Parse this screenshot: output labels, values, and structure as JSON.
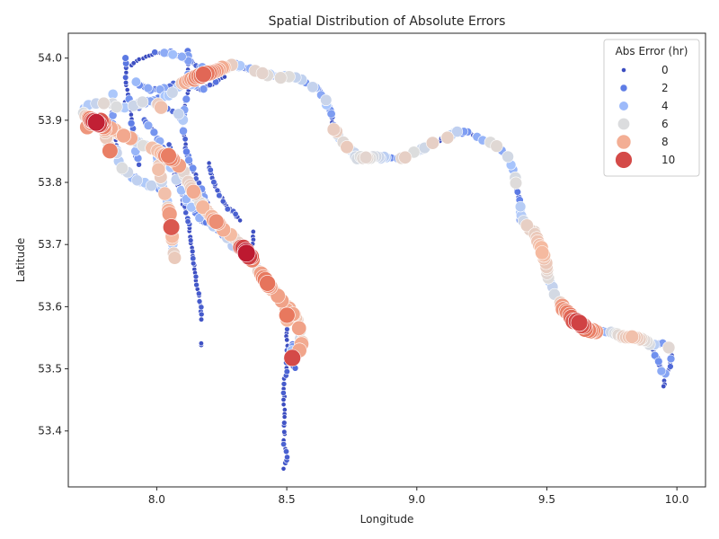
{
  "chart_data": {
    "type": "scatter",
    "title": "Spatial Distribution of Absolute Errors",
    "xlabel": "Longitude",
    "ylabel": "Latitude",
    "xlim": [
      7.66,
      10.11
    ],
    "ylim": [
      53.31,
      54.04
    ],
    "x_ticks": [
      8.0,
      8.5,
      9.0,
      9.5,
      10.0
    ],
    "x_tick_labels": [
      "8.0",
      "8.5",
      "9.0",
      "9.5",
      "10.0"
    ],
    "y_ticks": [
      53.4,
      53.5,
      53.6,
      53.7,
      53.8,
      53.9,
      54.0
    ],
    "y_tick_labels": [
      "53.4",
      "53.5",
      "53.6",
      "53.7",
      "53.8",
      "53.9",
      "54.0"
    ],
    "grid": false,
    "legend": {
      "title": "Abs Error (hr)",
      "placement": "top-right",
      "entries": [
        {
          "label": "0",
          "value": 0
        },
        {
          "label": "2",
          "value": 2
        },
        {
          "label": "4",
          "value": 4
        },
        {
          "label": "6",
          "value": 6
        },
        {
          "label": "8",
          "value": 8
        },
        {
          "label": "10",
          "value": 10
        }
      ]
    },
    "colormap": "coolwarm",
    "hue_range": [
      0,
      11
    ],
    "point_edge_color": "#ffffff",
    "tracks": [
      {
        "name": "t1",
        "path": [
          [
            7.72,
            53.92
          ],
          [
            7.78,
            53.93
          ],
          [
            7.86,
            53.92
          ],
          [
            7.95,
            53.93
          ],
          [
            8.05,
            53.94
          ],
          [
            8.1,
            53.96
          ],
          [
            8.16,
            53.97
          ],
          [
            8.22,
            53.98
          ],
          [
            8.3,
            53.99
          ],
          [
            8.38,
            53.98
          ],
          [
            8.45,
            53.97
          ],
          [
            8.52,
            53.97
          ],
          [
            8.58,
            53.96
          ],
          [
            8.62,
            53.95
          ],
          [
            8.65,
            53.93
          ],
          [
            8.67,
            53.91
          ],
          [
            8.68,
            53.89
          ],
          [
            8.7,
            53.87
          ],
          [
            8.73,
            53.86
          ],
          [
            8.75,
            53.85
          ],
          [
            8.77,
            53.84
          ],
          [
            8.8,
            53.84
          ],
          [
            8.85,
            53.84
          ],
          [
            8.9,
            53.84
          ],
          [
            8.95,
            53.84
          ],
          [
            9.0,
            53.85
          ],
          [
            9.05,
            53.86
          ],
          [
            9.1,
            53.87
          ],
          [
            9.15,
            53.88
          ],
          [
            9.2,
            53.88
          ],
          [
            9.25,
            53.87
          ],
          [
            9.3,
            53.86
          ],
          [
            9.33,
            53.85
          ],
          [
            9.35,
            53.84
          ],
          [
            9.37,
            53.82
          ],
          [
            9.38,
            53.8
          ],
          [
            9.39,
            53.78
          ],
          [
            9.4,
            53.76
          ],
          [
            9.4,
            53.74
          ],
          [
            9.42,
            53.73
          ],
          [
            9.45,
            53.72
          ],
          [
            9.47,
            53.7
          ],
          [
            9.49,
            53.68
          ],
          [
            9.5,
            53.66
          ],
          [
            9.51,
            53.64
          ],
          [
            9.53,
            53.62
          ],
          [
            9.56,
            53.6
          ],
          [
            9.6,
            53.58
          ],
          [
            9.63,
            53.57
          ],
          [
            9.68,
            53.56
          ],
          [
            9.75,
            53.56
          ],
          [
            9.8,
            53.55
          ],
          [
            9.85,
            53.55
          ],
          [
            9.9,
            53.54
          ],
          [
            9.95,
            53.54
          ],
          [
            9.98,
            53.53
          ]
        ],
        "step": 0.01,
        "base": 3.0,
        "amp": 4.0,
        "spikes": [
          [
            0.18,
            9.6
          ],
          [
            0.45,
            6.5
          ],
          [
            0.77,
            7.8
          ],
          [
            0.86,
            10.2
          ],
          [
            0.94,
            7.4
          ]
        ]
      },
      {
        "name": "t2",
        "path": [
          [
            7.72,
            53.91
          ],
          [
            7.75,
            53.9
          ],
          [
            7.8,
            53.89
          ],
          [
            7.85,
            53.88
          ],
          [
            7.9,
            53.87
          ],
          [
            7.95,
            53.86
          ],
          [
            8.0,
            53.85
          ],
          [
            8.05,
            53.84
          ],
          [
            8.08,
            53.83
          ],
          [
            8.1,
            53.82
          ],
          [
            8.12,
            53.8
          ],
          [
            8.15,
            53.78
          ],
          [
            8.18,
            53.76
          ],
          [
            8.22,
            53.74
          ],
          [
            8.27,
            53.72
          ],
          [
            8.32,
            53.7
          ],
          [
            8.36,
            53.68
          ],
          [
            8.39,
            53.66
          ],
          [
            8.42,
            53.64
          ],
          [
            8.46,
            53.62
          ],
          [
            8.5,
            53.6
          ],
          [
            8.52,
            53.59
          ],
          [
            8.54,
            53.58
          ],
          [
            8.55,
            53.56
          ],
          [
            8.56,
            53.54
          ],
          [
            8.55,
            53.53
          ]
        ],
        "step": 0.009,
        "base": 6.0,
        "amp": 2.5,
        "spikes": [
          [
            0.05,
            10.6
          ],
          [
            0.32,
            9.4
          ],
          [
            0.55,
            8.8
          ],
          [
            0.68,
            10.9
          ],
          [
            0.78,
            9.6
          ],
          [
            0.9,
            8.2
          ]
        ]
      },
      {
        "name": "t3",
        "path": [
          [
            8.2,
            53.83
          ],
          [
            8.22,
            53.8
          ],
          [
            8.24,
            53.78
          ],
          [
            8.27,
            53.76
          ],
          [
            8.3,
            53.75
          ],
          [
            8.32,
            53.74
          ]
        ],
        "step": 0.008,
        "base": 0.4,
        "amp": 0.8,
        "spikes": []
      },
      {
        "name": "t4",
        "path": [
          [
            8.05,
            53.86
          ],
          [
            8.07,
            53.83
          ],
          [
            8.08,
            53.8
          ],
          [
            8.1,
            53.77
          ],
          [
            8.12,
            53.74
          ],
          [
            8.13,
            53.71
          ],
          [
            8.14,
            53.68
          ],
          [
            8.15,
            53.65
          ],
          [
            8.16,
            53.62
          ],
          [
            8.17,
            53.6
          ],
          [
            8.17,
            53.58
          ]
        ],
        "step": 0.01,
        "base": 0.3,
        "amp": 0.6,
        "spikes": []
      },
      {
        "name": "t5",
        "path": [
          [
            8.17,
            53.54
          ],
          [
            8.17,
            53.54
          ]
        ],
        "step": 0.01,
        "base": 0.2,
        "amp": 0.0,
        "spikes": []
      },
      {
        "name": "t6",
        "path": [
          [
            8.37,
            53.72
          ],
          [
            8.37,
            53.7
          ]
        ],
        "step": 0.01,
        "base": 0.2,
        "amp": 0.0,
        "spikes": []
      },
      {
        "name": "t7",
        "path": [
          [
            8.0,
            53.84
          ],
          [
            8.02,
            53.8
          ],
          [
            8.04,
            53.77
          ],
          [
            8.05,
            53.74
          ],
          [
            8.06,
            53.72
          ],
          [
            8.06,
            53.7
          ],
          [
            8.07,
            53.68
          ]
        ],
        "step": 0.011,
        "base": 5.5,
        "amp": 3.0,
        "spikes": [
          [
            0.55,
            8.5
          ],
          [
            0.72,
            10.5
          ],
          [
            0.85,
            5.5
          ]
        ]
      },
      {
        "name": "t8",
        "path": [
          [
            8.5,
            53.6
          ],
          [
            8.5,
            53.55
          ],
          [
            8.5,
            53.5
          ],
          [
            8.49,
            53.48
          ],
          [
            8.49,
            53.45
          ],
          [
            8.49,
            53.41
          ],
          [
            8.49,
            53.38
          ],
          [
            8.5,
            53.36
          ],
          [
            8.49,
            53.34
          ]
        ],
        "step": 0.011,
        "base": 0.3,
        "amp": 0.7,
        "spikes": [
          [
            0.05,
            9.5
          ]
        ]
      },
      {
        "name": "t9",
        "path": [
          [
            8.52,
            53.54
          ],
          [
            8.52,
            53.51
          ],
          [
            8.53,
            53.5
          ]
        ],
        "step": 0.008,
        "base": 3.0,
        "amp": 2.0,
        "spikes": [
          [
            0.5,
            10.0
          ]
        ]
      },
      {
        "name": "t10",
        "path": [
          [
            9.9,
            53.54
          ],
          [
            9.92,
            53.52
          ],
          [
            9.94,
            53.5
          ],
          [
            9.95,
            53.49
          ],
          [
            9.97,
            53.5
          ],
          [
            9.98,
            53.52
          ]
        ],
        "step": 0.008,
        "base": 1.2,
        "amp": 2.5,
        "spikes": []
      },
      {
        "name": "t11",
        "path": [
          [
            9.95,
            53.48
          ],
          [
            9.95,
            53.47
          ]
        ],
        "step": 0.01,
        "base": 0.2,
        "amp": 0.0,
        "spikes": []
      },
      {
        "name": "t12",
        "path": [
          [
            7.9,
            53.99
          ],
          [
            7.95,
            54.0
          ],
          [
            8.0,
            54.01
          ],
          [
            8.05,
            54.01
          ],
          [
            8.1,
            54.0
          ],
          [
            8.15,
            53.99
          ],
          [
            8.2,
            53.98
          ],
          [
            8.25,
            53.99
          ],
          [
            8.3,
            53.99
          ],
          [
            8.35,
            53.98
          ]
        ],
        "step": 0.012,
        "base": 1.0,
        "amp": 3.5,
        "spikes": []
      },
      {
        "name": "t13",
        "path": [
          [
            7.92,
            53.96
          ],
          [
            7.97,
            53.95
          ],
          [
            8.02,
            53.95
          ],
          [
            8.07,
            53.96
          ],
          [
            8.12,
            53.96
          ],
          [
            8.17,
            53.95
          ],
          [
            8.22,
            53.96
          ],
          [
            8.26,
            53.97
          ]
        ],
        "step": 0.012,
        "base": 1.5,
        "amp": 3.0,
        "spikes": []
      },
      {
        "name": "t14",
        "path": [
          [
            7.88,
            53.93
          ],
          [
            7.93,
            53.92
          ],
          [
            7.98,
            53.93
          ],
          [
            8.03,
            53.92
          ],
          [
            8.08,
            53.91
          ],
          [
            8.1,
            53.9
          ]
        ],
        "step": 0.011,
        "base": 2.0,
        "amp": 3.5,
        "spikes": [
          [
            0.6,
            8.5
          ]
        ]
      },
      {
        "name": "t15",
        "path": [
          [
            7.95,
            53.9
          ],
          [
            7.99,
            53.88
          ],
          [
            8.02,
            53.86
          ],
          [
            8.04,
            53.84
          ],
          [
            8.06,
            53.82
          ],
          [
            8.08,
            53.8
          ],
          [
            8.1,
            53.78
          ],
          [
            8.13,
            53.76
          ],
          [
            8.17,
            53.74
          ],
          [
            8.22,
            53.73
          ],
          [
            8.27,
            53.71
          ],
          [
            8.31,
            53.69
          ]
        ],
        "step": 0.01,
        "base": 1.8,
        "amp": 3.5,
        "spikes": []
      },
      {
        "name": "t16",
        "path": [
          [
            7.83,
            53.94
          ],
          [
            7.83,
            53.9
          ],
          [
            7.84,
            53.87
          ],
          [
            7.85,
            53.84
          ],
          [
            7.87,
            53.82
          ],
          [
            7.9,
            53.81
          ],
          [
            7.95,
            53.8
          ],
          [
            8.0,
            53.79
          ],
          [
            8.02,
            53.79
          ]
        ],
        "step": 0.011,
        "base": 2.5,
        "amp": 3.5,
        "spikes": []
      },
      {
        "name": "t17",
        "path": [
          [
            7.88,
            54.0
          ],
          [
            7.88,
            53.97
          ],
          [
            7.89,
            53.94
          ],
          [
            7.9,
            53.91
          ],
          [
            7.91,
            53.88
          ],
          [
            7.92,
            53.85
          ],
          [
            7.93,
            53.83
          ]
        ],
        "step": 0.012,
        "base": 1.0,
        "amp": 3.0,
        "spikes": []
      },
      {
        "name": "t18",
        "path": [
          [
            8.12,
            54.01
          ],
          [
            8.12,
            53.98
          ],
          [
            8.12,
            53.95
          ],
          [
            8.11,
            53.92
          ],
          [
            8.1,
            53.89
          ],
          [
            8.11,
            53.86
          ],
          [
            8.12,
            53.84
          ],
          [
            8.14,
            53.82
          ],
          [
            8.16,
            53.8
          ],
          [
            8.18,
            53.78
          ],
          [
            8.2,
            53.76
          ]
        ],
        "step": 0.011,
        "base": 0.8,
        "amp": 2.5,
        "spikes": []
      },
      {
        "name": "t19",
        "path": [
          [
            7.73,
            53.89
          ],
          [
            7.76,
            53.9
          ],
          [
            7.79,
            53.9
          ],
          [
            7.8,
            53.88
          ],
          [
            7.81,
            53.86
          ],
          [
            7.82,
            53.85
          ]
        ],
        "step": 0.01,
        "base": 7.0,
        "amp": 2.5,
        "spikes": [
          [
            0.4,
            9.8
          ]
        ]
      }
    ]
  }
}
